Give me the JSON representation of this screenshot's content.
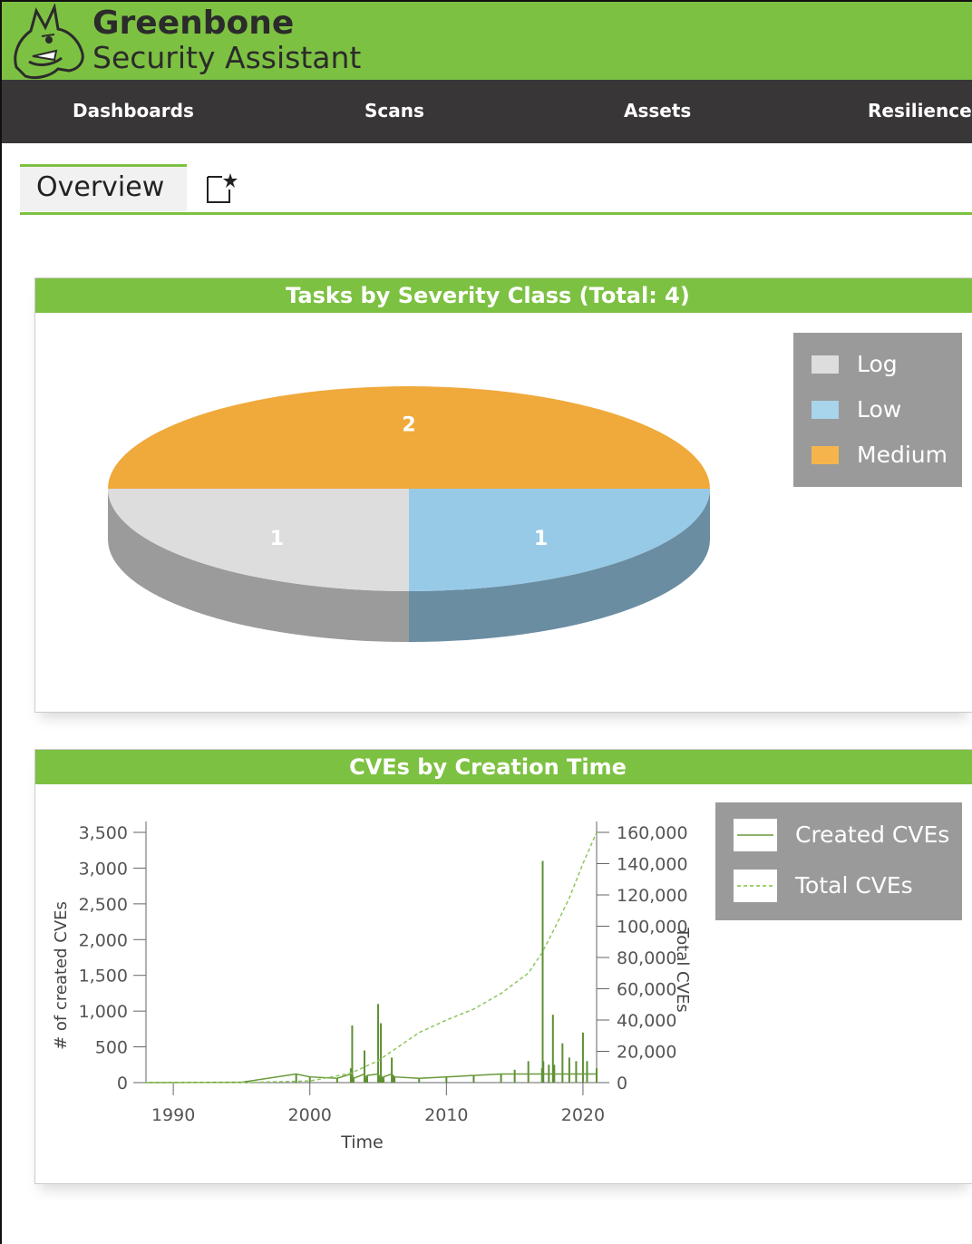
{
  "brand": {
    "name": "Greenbone",
    "subtitle": "Security Assistant"
  },
  "nav": {
    "items": [
      {
        "label": "Dashboards"
      },
      {
        "label": "Scans"
      },
      {
        "label": "Assets"
      },
      {
        "label": "Resilience"
      }
    ]
  },
  "tabs": {
    "overview": "Overview",
    "new_tab_icon": "new-dashboard-icon"
  },
  "panels": {
    "severity": {
      "title": "Tasks by Severity Class (Total: 4)",
      "legend": [
        {
          "label": "Log",
          "color": "#dddddd"
        },
        {
          "label": "Low",
          "color": "#a8d4ec"
        },
        {
          "label": "Medium",
          "color": "#f6b54c"
        }
      ]
    },
    "cves": {
      "title": "CVEs by Creation Time",
      "legend": [
        {
          "label": "Created CVEs",
          "style": "solid"
        },
        {
          "label": "Total CVEs",
          "style": "dashed"
        }
      ]
    }
  },
  "chart_data": [
    {
      "type": "pie",
      "title": "Tasks by Severity Class (Total: 4)",
      "categories": [
        "Medium",
        "Low",
        "Log"
      ],
      "values": [
        2,
        1,
        1
      ],
      "colors": {
        "Medium": "#f0a93b",
        "Low": "#97cae7",
        "Log": "#dddddd"
      },
      "data_labels": [
        "2",
        "1",
        "1"
      ],
      "legend": "top-right"
    },
    {
      "type": "line",
      "title": "CVEs by Creation Time",
      "xlabel": "Time",
      "ylabel": "# of created CVEs",
      "y2label": "Total CVEs",
      "xlim": [
        1988,
        2021
      ],
      "ylim": [
        0,
        3500
      ],
      "y2lim": [
        0,
        160000
      ],
      "xticks": [
        "1990",
        "2000",
        "2010",
        "2020"
      ],
      "yticks": [
        "0",
        "500",
        "1,000",
        "1,500",
        "2,000",
        "2,500",
        "3,000",
        "3,500"
      ],
      "y2ticks": [
        "0",
        "20,000",
        "40,000",
        "60,000",
        "80,000",
        "100,000",
        "120,000",
        "140,000",
        "160,000"
      ],
      "series": [
        {
          "name": "Created CVEs",
          "axis": "left",
          "x": [
            1988,
            1995,
            1999,
            2000,
            2002,
            2003,
            2003.1,
            2003.2,
            2004,
            2004.1,
            2004.2,
            2005,
            2005.1,
            2005.2,
            2005.3,
            2005.4,
            2006,
            2006.1,
            2006.2,
            2008,
            2010,
            2012,
            2014,
            2015,
            2016,
            2017,
            2017.05,
            2017.1,
            2017.5,
            2017.8,
            2017.9,
            2018.5,
            2019,
            2019.5,
            2020,
            2020.3,
            2021
          ],
          "y": [
            0,
            5,
            120,
            80,
            60,
            200,
            800,
            60,
            450,
            60,
            100,
            1100,
            80,
            830,
            60,
            80,
            350,
            100,
            80,
            60,
            80,
            100,
            120,
            180,
            300,
            200,
            3100,
            300,
            250,
            950,
            250,
            550,
            350,
            300,
            700,
            300,
            200
          ]
        },
        {
          "name": "Total CVEs",
          "axis": "right",
          "x": [
            1988,
            1995,
            2000,
            2003,
            2005,
            2006,
            2008,
            2010,
            2012,
            2014,
            2016,
            2017,
            2018,
            2019,
            2020,
            2021
          ],
          "y": [
            0,
            100,
            1000,
            6000,
            14000,
            20000,
            32000,
            40000,
            47000,
            57000,
            70000,
            83000,
            100000,
            118000,
            140000,
            160000
          ]
        }
      ],
      "legend": "top-right"
    }
  ]
}
